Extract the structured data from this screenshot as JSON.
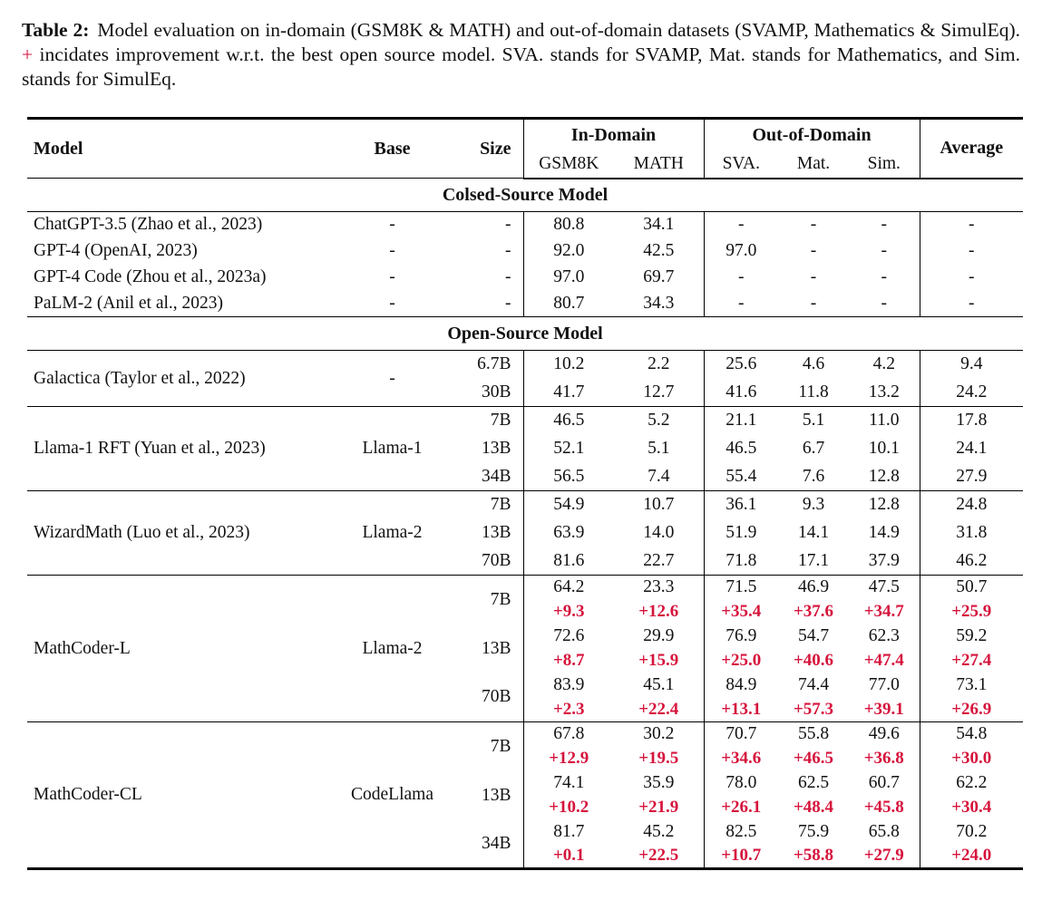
{
  "colors": {
    "accent_red": "#d6143c",
    "text": "#111111",
    "rule": "#000000",
    "background": "#ffffff"
  },
  "caption": {
    "label": "Table 2:",
    "before_plus": "Model evaluation on in-domain (GSM8K & MATH) and out-of-domain datasets (SVAMP, Mathematics & SimulEq).",
    "plus": "+",
    "after_plus": "incidates improvement w.r.t. the best open source model. SVA. stands for SVAMP, Mat. stands for Mathematics, and Sim. stands for SimulEq."
  },
  "table": {
    "headers": {
      "model": "Model",
      "base": "Base",
      "size": "Size",
      "in_domain": "In-Domain",
      "out_of_domain": "Out-of-Domain",
      "gsm8k": "GSM8K",
      "math": "MATH",
      "sva": "SVA.",
      "mat": "Mat.",
      "sim": "Sim.",
      "average": "Average"
    },
    "sections": [
      {
        "title": "Colsed-Source Model",
        "separate_groups": false,
        "groups": [
          {
            "model": "ChatGPT-3.5 (Zhao et al., 2023)",
            "base": "-",
            "rows": [
              {
                "size": "-",
                "values": [
                  "80.8",
                  "34.1",
                  "-",
                  "-",
                  "-",
                  "-"
                ]
              }
            ]
          },
          {
            "model": "GPT-4 (OpenAI, 2023)",
            "base": "-",
            "rows": [
              {
                "size": "-",
                "values": [
                  "92.0",
                  "42.5",
                  "97.0",
                  "-",
                  "-",
                  "-"
                ]
              }
            ]
          },
          {
            "model": "GPT-4 Code (Zhou et al., 2023a)",
            "base": "-",
            "rows": [
              {
                "size": "-",
                "values": [
                  "97.0",
                  "69.7",
                  "-",
                  "-",
                  "-",
                  "-"
                ]
              }
            ]
          },
          {
            "model": "PaLM-2 (Anil et al., 2023)",
            "base": "-",
            "rows": [
              {
                "size": "-",
                "values": [
                  "80.7",
                  "34.3",
                  "-",
                  "-",
                  "-",
                  "-"
                ]
              }
            ]
          }
        ]
      },
      {
        "title": "Open-Source Model",
        "separate_groups": true,
        "groups": [
          {
            "model": "Galactica (Taylor et al., 2022)",
            "base": "-",
            "rows": [
              {
                "size": "6.7B",
                "values": [
                  "10.2",
                  "2.2",
                  "25.6",
                  "4.6",
                  "4.2",
                  "9.4"
                ]
              },
              {
                "size": "30B",
                "values": [
                  "41.7",
                  "12.7",
                  "41.6",
                  "11.8",
                  "13.2",
                  "24.2"
                ]
              }
            ]
          },
          {
            "model": "Llama-1 RFT (Yuan et al., 2023)",
            "base": "Llama-1",
            "rows": [
              {
                "size": "7B",
                "values": [
                  "46.5",
                  "5.2",
                  "21.1",
                  "5.1",
                  "11.0",
                  "17.8"
                ]
              },
              {
                "size": "13B",
                "values": [
                  "52.1",
                  "5.1",
                  "46.5",
                  "6.7",
                  "10.1",
                  "24.1"
                ]
              },
              {
                "size": "34B",
                "values": [
                  "56.5",
                  "7.4",
                  "55.4",
                  "7.6",
                  "12.8",
                  "27.9"
                ]
              }
            ]
          },
          {
            "model": "WizardMath (Luo et al., 2023)",
            "base": "Llama-2",
            "rows": [
              {
                "size": "7B",
                "values": [
                  "54.9",
                  "10.7",
                  "36.1",
                  "9.3",
                  "12.8",
                  "24.8"
                ]
              },
              {
                "size": "13B",
                "values": [
                  "63.9",
                  "14.0",
                  "51.9",
                  "14.1",
                  "14.9",
                  "31.8"
                ]
              },
              {
                "size": "70B",
                "values": [
                  "81.6",
                  "22.7",
                  "71.8",
                  "17.1",
                  "37.9",
                  "46.2"
                ]
              }
            ]
          },
          {
            "model": "MathCoder-L",
            "base": "Llama-2",
            "rows": [
              {
                "size": "7B",
                "values": [
                  "64.2",
                  "23.3",
                  "71.5",
                  "46.9",
                  "47.5",
                  "50.7"
                ],
                "delta": [
                  "+9.3",
                  "+12.6",
                  "+35.4",
                  "+37.6",
                  "+34.7",
                  "+25.9"
                ]
              },
              {
                "size": "13B",
                "values": [
                  "72.6",
                  "29.9",
                  "76.9",
                  "54.7",
                  "62.3",
                  "59.2"
                ],
                "delta": [
                  "+8.7",
                  "+15.9",
                  "+25.0",
                  "+40.6",
                  "+47.4",
                  "+27.4"
                ]
              },
              {
                "size": "70B",
                "values": [
                  "83.9",
                  "45.1",
                  "84.9",
                  "74.4",
                  "77.0",
                  "73.1"
                ],
                "delta": [
                  "+2.3",
                  "+22.4",
                  "+13.1",
                  "+57.3",
                  "+39.1",
                  "+26.9"
                ]
              }
            ]
          },
          {
            "model": "MathCoder-CL",
            "base": "CodeLlama",
            "rows": [
              {
                "size": "7B",
                "values": [
                  "67.8",
                  "30.2",
                  "70.7",
                  "55.8",
                  "49.6",
                  "54.8"
                ],
                "delta": [
                  "+12.9",
                  "+19.5",
                  "+34.6",
                  "+46.5",
                  "+36.8",
                  "+30.0"
                ]
              },
              {
                "size": "13B",
                "values": [
                  "74.1",
                  "35.9",
                  "78.0",
                  "62.5",
                  "60.7",
                  "62.2"
                ],
                "delta": [
                  "+10.2",
                  "+21.9",
                  "+26.1",
                  "+48.4",
                  "+45.8",
                  "+30.4"
                ]
              },
              {
                "size": "34B",
                "values": [
                  "81.7",
                  "45.2",
                  "82.5",
                  "75.9",
                  "65.8",
                  "70.2"
                ],
                "delta": [
                  "+0.1",
                  "+22.5",
                  "+10.7",
                  "+58.8",
                  "+27.9",
                  "+24.0"
                ]
              }
            ]
          }
        ]
      }
    ]
  }
}
